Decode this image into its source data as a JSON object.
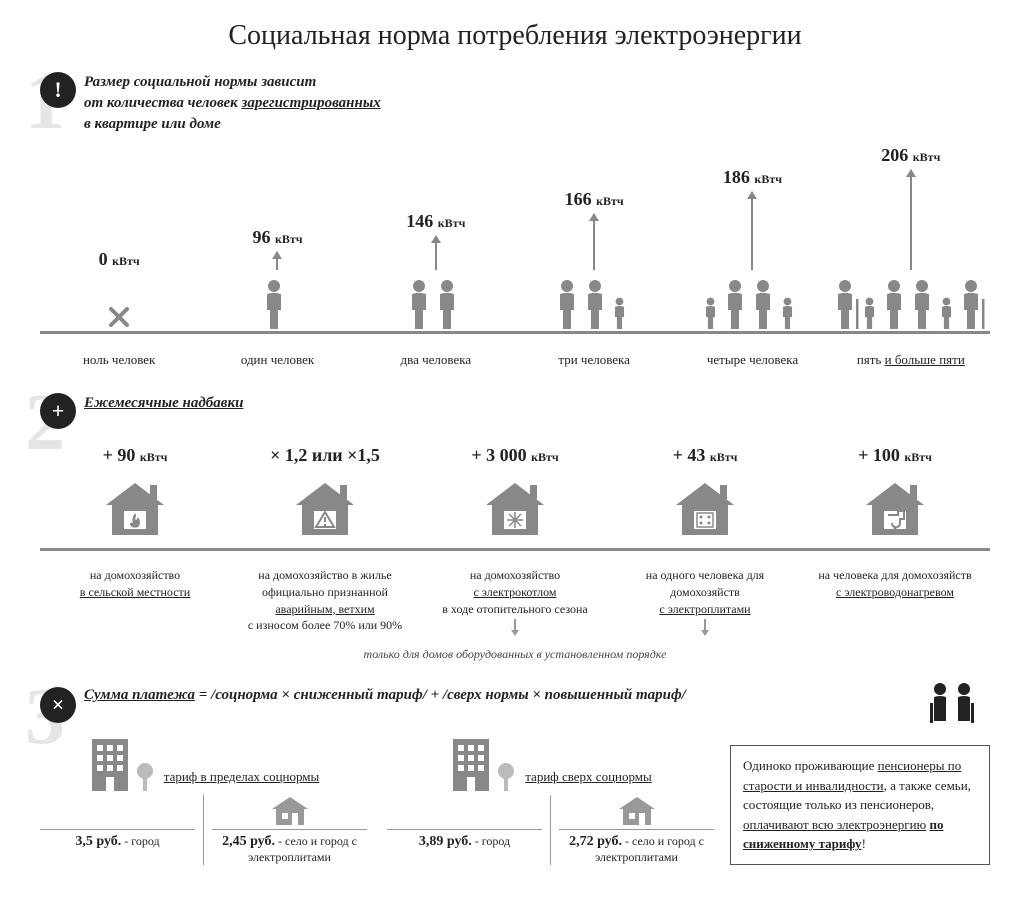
{
  "colors": {
    "icon": "#888888",
    "dark": "#222222",
    "light_num": "#e5e5e5",
    "line": "#888888"
  },
  "title": "Социальная норма потребления электроэнергии",
  "section1": {
    "num": "1",
    "badge": "!",
    "text_l1": "Размер социальной нормы зависит",
    "text_l2a": "от количества человек ",
    "text_l2b": "зарегистрированных",
    "text_l3": "в квартире или доме",
    "unit": "кВтч",
    "items": [
      {
        "value": "0",
        "arrow_h": 0,
        "people": 0,
        "caption": "ноль человек"
      },
      {
        "value": "96",
        "arrow_h": 18,
        "people": 1,
        "caption": "один человек"
      },
      {
        "value": "146",
        "arrow_h": 34,
        "people": 2,
        "caption": "два человека"
      },
      {
        "value": "166",
        "arrow_h": 56,
        "people": 3,
        "caption": "три человека"
      },
      {
        "value": "186",
        "arrow_h": 78,
        "people": 4,
        "caption": "четыре человека"
      },
      {
        "value": "206",
        "arrow_h": 100,
        "people": 5,
        "caption_a": "пять ",
        "caption_b": "и больше пяти"
      }
    ]
  },
  "section2": {
    "num": "2",
    "badge": "+",
    "heading": "Ежемесячные надбавки",
    "unit": "кВтч",
    "items": [
      {
        "value": "+ 90",
        "show_unit": true,
        "icon": "fire",
        "desc_lines": [
          "на домохозяйство"
        ],
        "desc_under": "в сельской местности"
      },
      {
        "value": "× 1,2 или ×1,5",
        "show_unit": false,
        "icon": "warn",
        "desc_plain": "на домохозяйство в жилье официально признанной",
        "desc_under2": "аварийным, ветхим",
        "desc_tail": "с износом более 70% или 90%"
      },
      {
        "value": "+ 3 000",
        "show_unit": true,
        "icon": "snow",
        "desc_pre": "на домохозяйство",
        "desc_under": "с электрокотлом",
        "desc_post": "в ходе отопительного сезона",
        "arrow_down": true
      },
      {
        "value": "+ 43",
        "show_unit": true,
        "icon": "stove",
        "desc_pre": "на одного человека для домохозяйств",
        "desc_under": "с электроплитами",
        "arrow_down": true
      },
      {
        "value": "+ 100",
        "show_unit": true,
        "icon": "water",
        "desc_pre": "на человека для домохозяйств",
        "desc_under": "с электроводонагревом"
      }
    ],
    "footnote": "только для домов оборудованных в установленном порядке"
  },
  "section3": {
    "num": "3",
    "badge": "×",
    "formula_label": "Сумма платежа",
    "formula_rest": " = /соцнорма × сниженный тариф/ + /сверх нормы × повышенный тариф/",
    "t1_label": "тариф в пределах соцнормы",
    "t2_label": "тариф сверх соцнормы",
    "t1_city_price": "3,5 руб.",
    "city_label": " - город",
    "t1_village_price": "2,45 руб.",
    "village_label": " - село и город с электроплитами",
    "t2_city_price": "3,89 руб.",
    "t2_village_price": "2,72 руб.",
    "pension_l1a": "Одиноко проживающие ",
    "pension_l1b": "пенсионеры по старости и инвалидности",
    "pension_l2": ", а также семьи, состоящие только из пенсионеров, ",
    "pension_l3": "оплачивают всю электроэнергию",
    "pension_l4": "по сниженному тарифу",
    "pension_excl": "!"
  }
}
